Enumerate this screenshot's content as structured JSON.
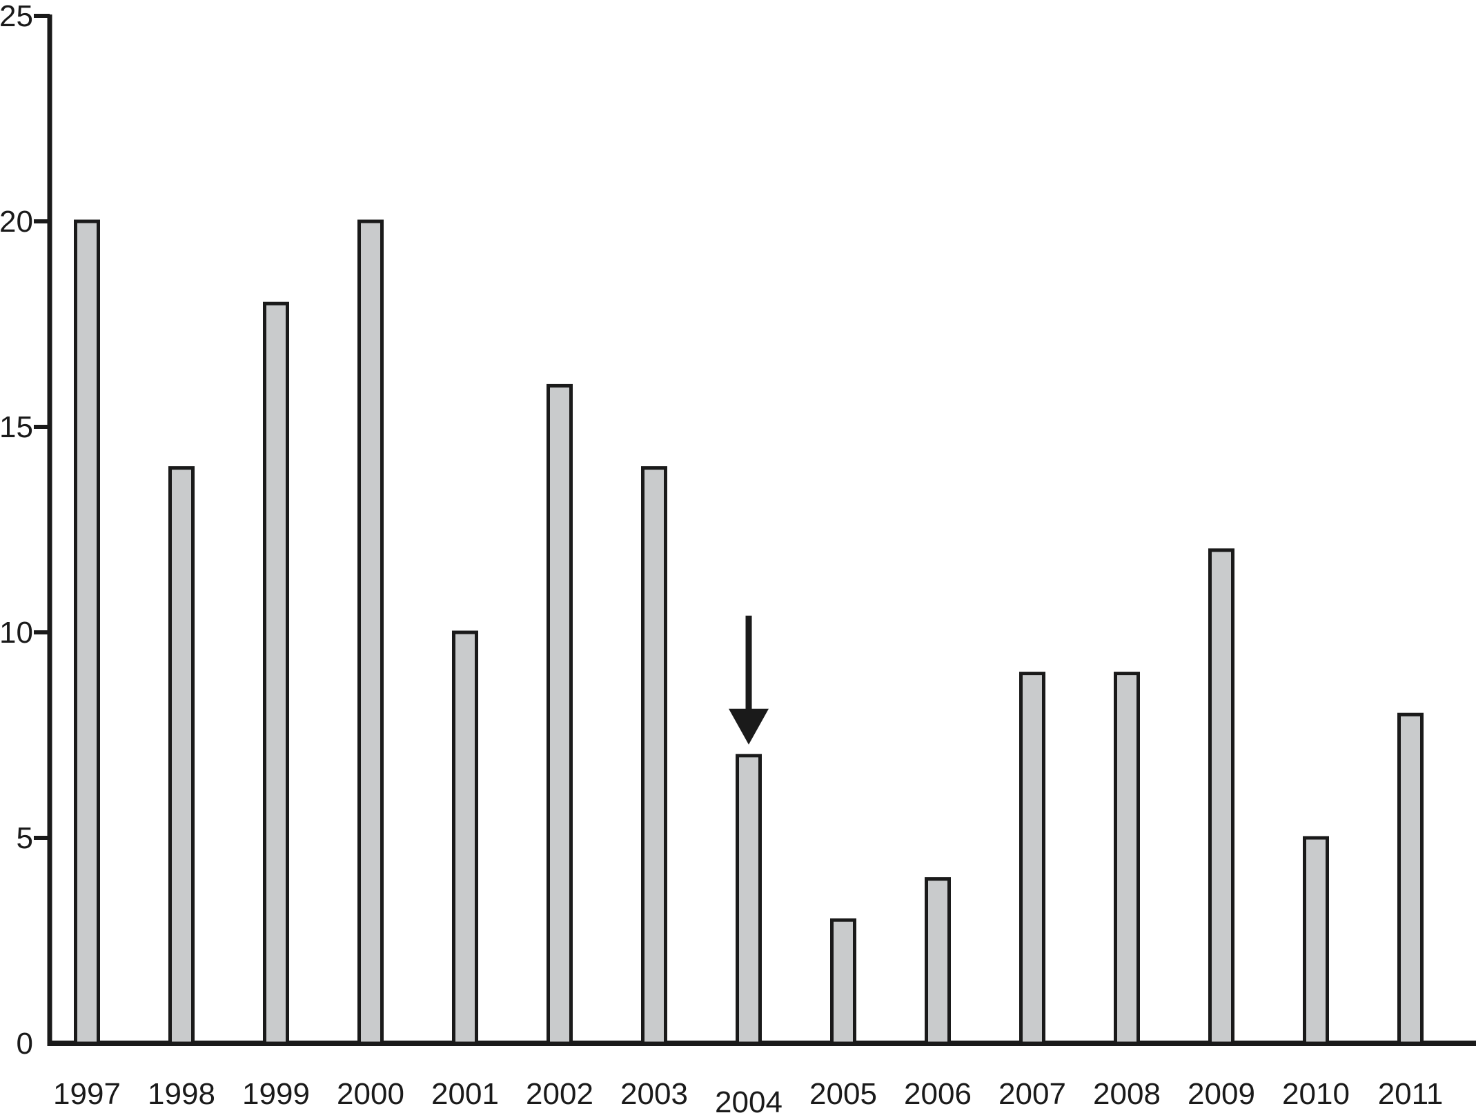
{
  "chart_data": {
    "type": "bar",
    "title": "",
    "xlabel": "",
    "ylabel": "",
    "categories": [
      "1997",
      "1998",
      "1999",
      "2000",
      "2001",
      "2002",
      "2003",
      "2004",
      "2005",
      "2006",
      "2007",
      "2008",
      "2009",
      "2010",
      "2011"
    ],
    "values": [
      20,
      14,
      18,
      20,
      10,
      16,
      14,
      7,
      3,
      4,
      9,
      9,
      12,
      5,
      8
    ],
    "ylim": [
      0,
      25
    ],
    "yticks": [
      0,
      5,
      10,
      15,
      20,
      25
    ],
    "ytick_labels": [
      "0",
      "5",
      "10",
      "15",
      "20",
      "25"
    ],
    "grid": false,
    "legend": null,
    "annotation": {
      "type": "down-arrow",
      "target_category": "2004",
      "target_value": 7
    },
    "colors": {
      "bar_fill": "#c9cbcc",
      "bar_stroke": "#1a1a1a",
      "axis": "#1a1a1a",
      "text": "#1a1a1a",
      "background": "#ffffff"
    }
  }
}
